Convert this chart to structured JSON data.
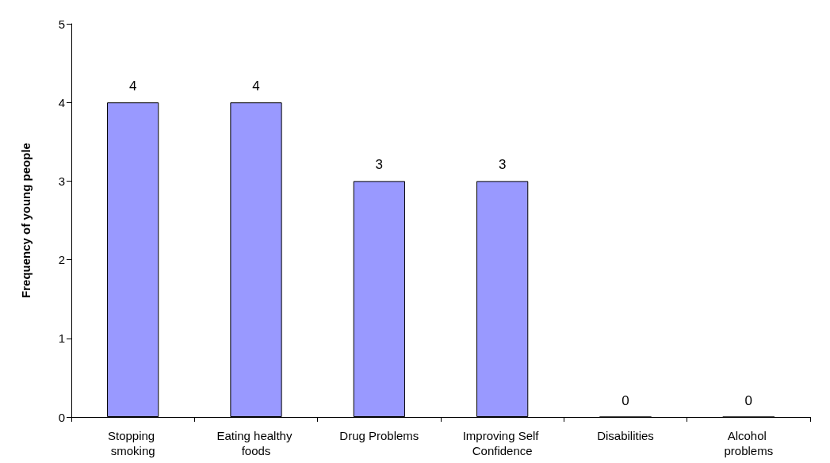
{
  "chart_data": {
    "type": "bar",
    "ylabel": "Frequency of young people",
    "categories": [
      "Stopping smoking",
      "Eating healthy foods",
      "Drug Problems",
      "Improving Self Confidence",
      "Disabilities",
      "Alcohol problems"
    ],
    "values": [
      4,
      4,
      3,
      3,
      0,
      0
    ],
    "color": "#9999ff",
    "ylim": [
      0,
      5
    ],
    "yticks": [
      0,
      1,
      2,
      3,
      4,
      5
    ],
    "grid": false,
    "data_labels": true
  }
}
